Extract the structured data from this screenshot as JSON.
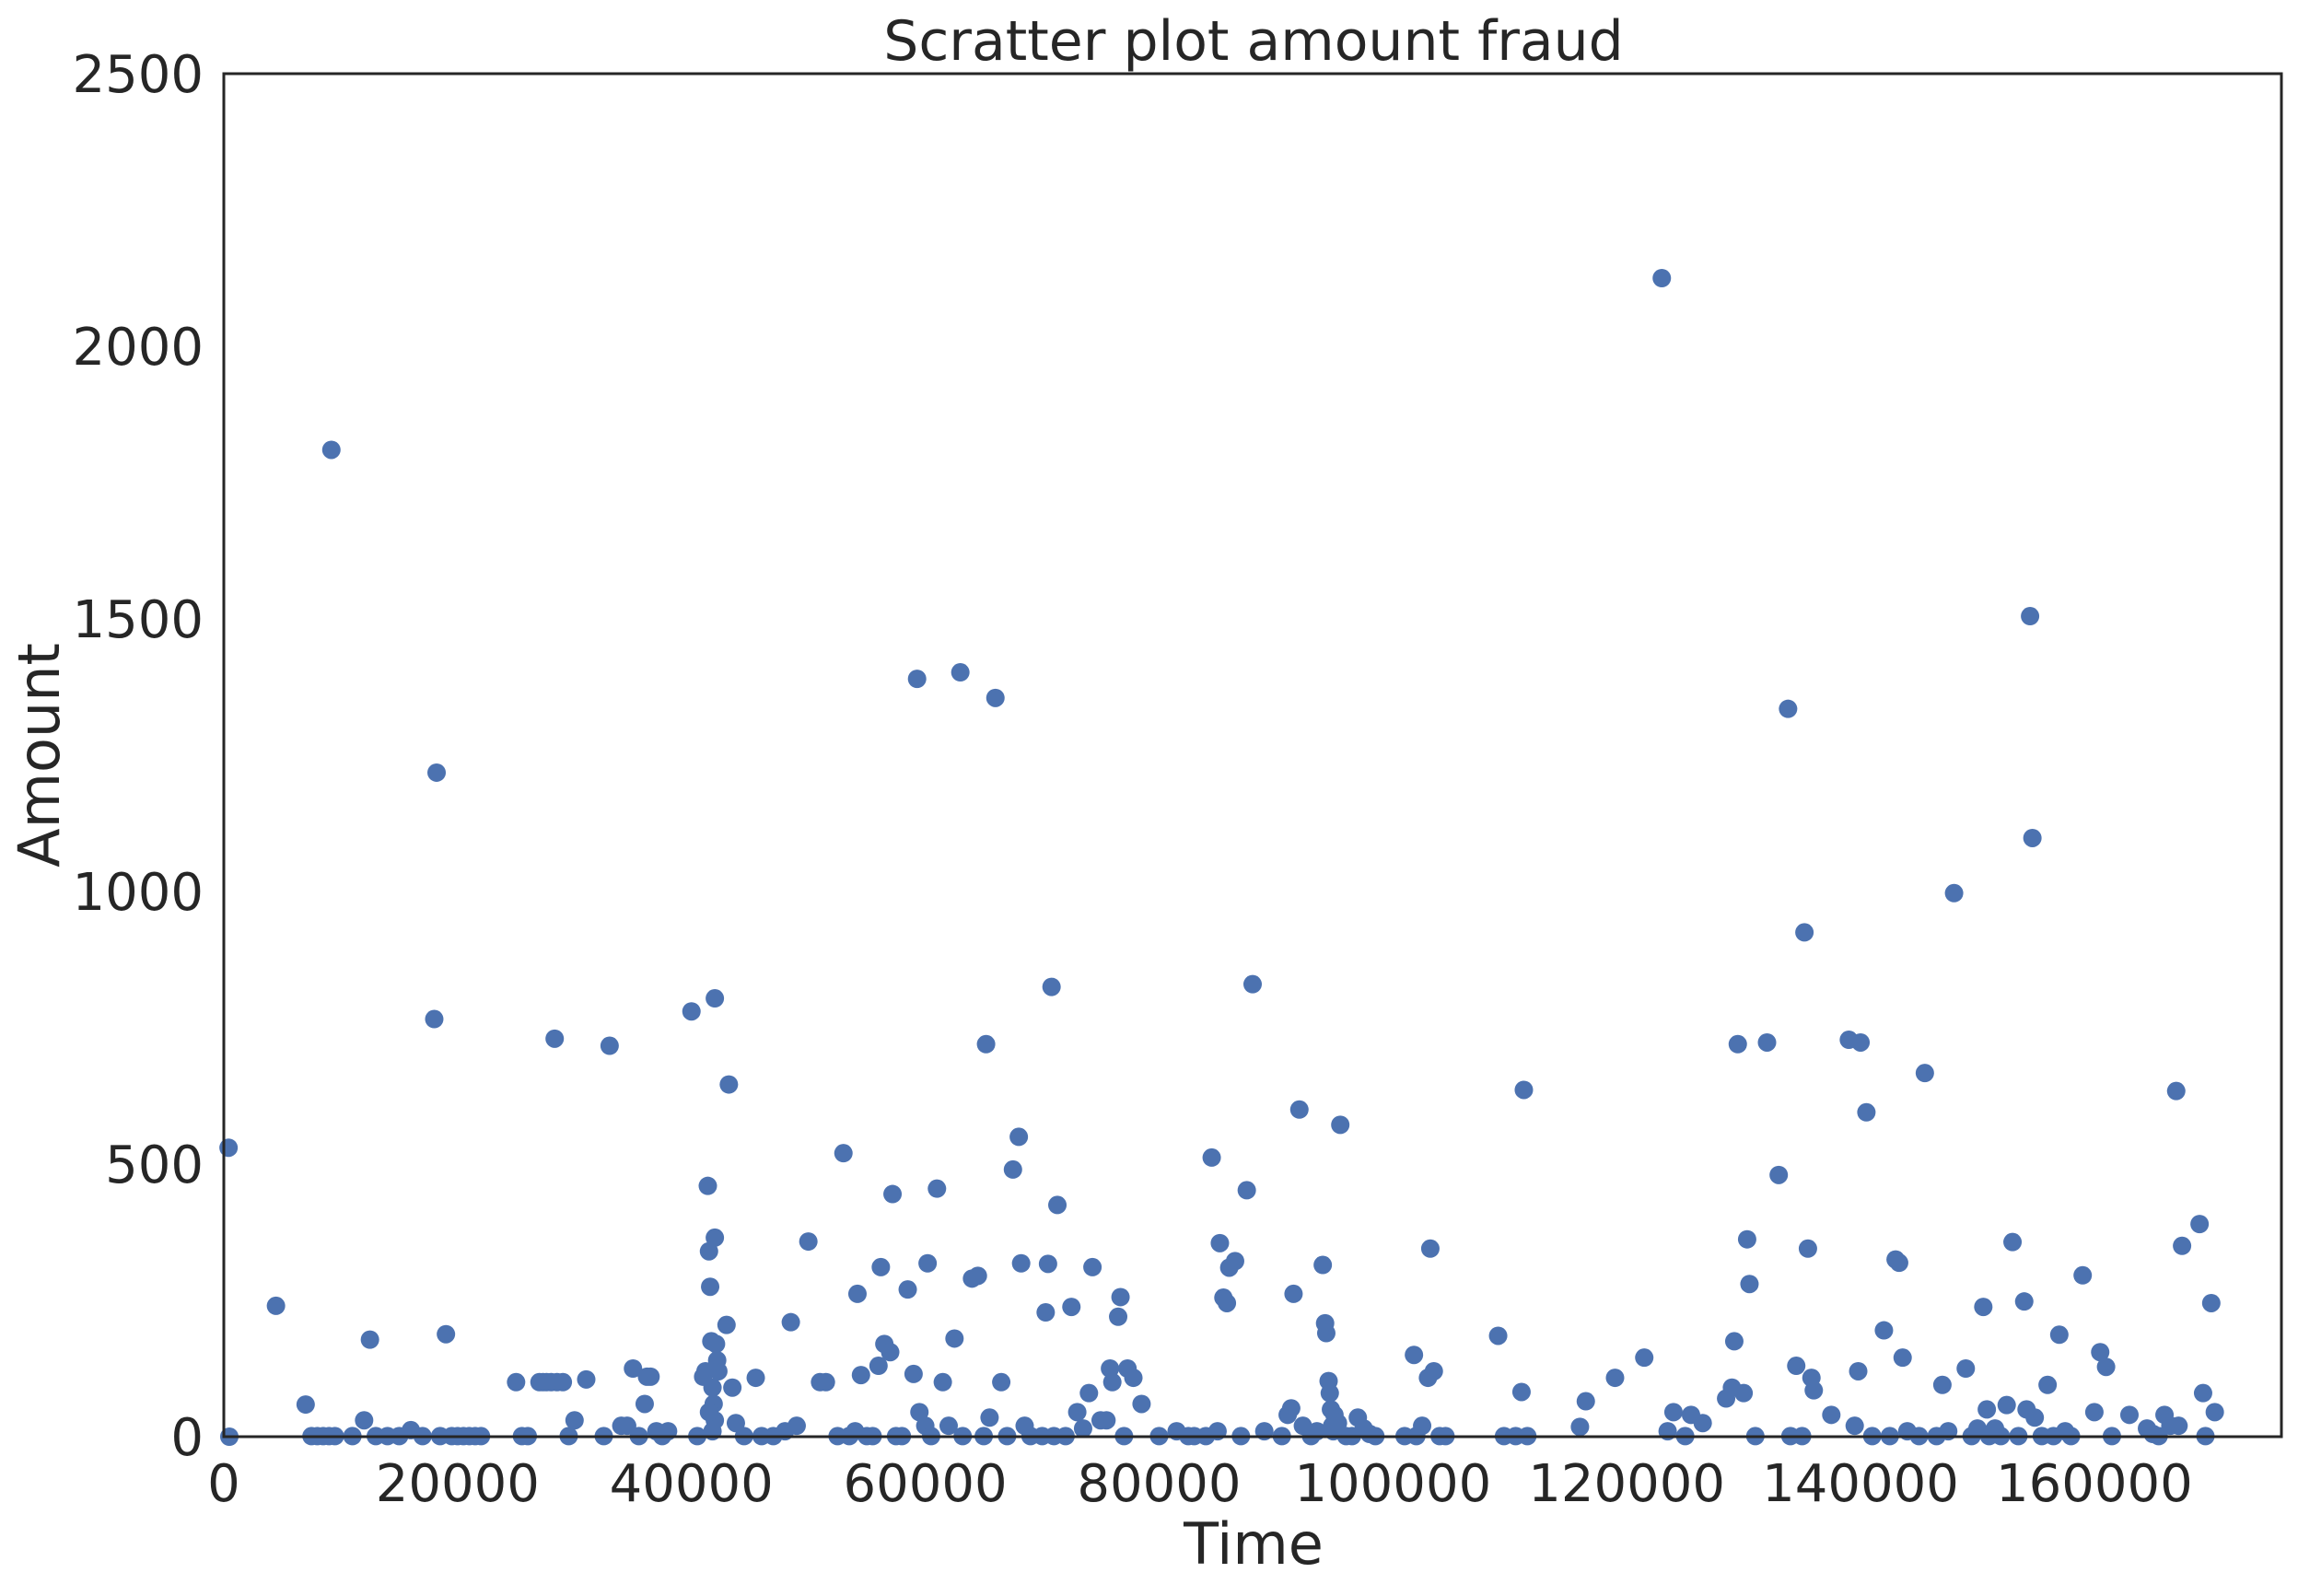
{
  "chart_data": {
    "type": "scatter",
    "title": "Scratter plot amount fraud",
    "xlabel": "Time",
    "ylabel": "Amount",
    "xlim": [
      0,
      176000
    ],
    "ylim": [
      0,
      2500
    ],
    "xticks": [
      0,
      20000,
      40000,
      60000,
      80000,
      100000,
      120000,
      140000,
      160000
    ],
    "xtick_labels": [
      "0",
      "20000",
      "40000",
      "60000",
      "80000",
      "100000",
      "120000",
      "140000",
      "160000"
    ],
    "yticks": [
      0,
      500,
      1000,
      1500,
      2000,
      2500
    ],
    "ytick_labels": [
      "0",
      "500",
      "1000",
      "1500",
      "2000",
      "2500"
    ],
    "grid": false,
    "marker_color": "#4c72b0",
    "series": [
      {
        "points": [
          [
            406,
            530
          ],
          [
            472,
            0
          ],
          [
            4462,
            240
          ],
          [
            7000,
            59
          ],
          [
            7500,
            1
          ],
          [
            8000,
            1
          ],
          [
            8500,
            1
          ],
          [
            9000,
            1
          ],
          [
            9200,
            1810
          ],
          [
            9500,
            1
          ],
          [
            11000,
            1
          ],
          [
            12000,
            30
          ],
          [
            12500,
            178
          ],
          [
            13000,
            1
          ],
          [
            14000,
            1
          ],
          [
            15000,
            1
          ],
          [
            16000,
            12
          ],
          [
            17000,
            1
          ],
          [
            18000,
            766
          ],
          [
            18200,
            1218
          ],
          [
            18500,
            1
          ],
          [
            19000,
            188
          ],
          [
            19500,
            1
          ],
          [
            20000,
            1
          ],
          [
            20500,
            1
          ],
          [
            21000,
            1
          ],
          [
            21500,
            1
          ],
          [
            22000,
            1
          ],
          [
            25000,
            100
          ],
          [
            25500,
            1
          ],
          [
            26000,
            1
          ],
          [
            27000,
            100
          ],
          [
            27300,
            100
          ],
          [
            27600,
            100
          ],
          [
            28000,
            100
          ],
          [
            28300,
            730
          ],
          [
            28500,
            100
          ],
          [
            29000,
            100
          ],
          [
            29500,
            1
          ],
          [
            30000,
            30
          ],
          [
            31000,
            105
          ],
          [
            32500,
            1
          ],
          [
            33000,
            717
          ],
          [
            34000,
            20
          ],
          [
            34500,
            20
          ],
          [
            35000,
            125
          ],
          [
            35500,
            1
          ],
          [
            36000,
            60
          ],
          [
            36200,
            110
          ],
          [
            36500,
            110
          ],
          [
            37000,
            10
          ],
          [
            37500,
            1
          ],
          [
            38000,
            10
          ],
          [
            40000,
            780
          ],
          [
            40500,
            1
          ],
          [
            41000,
            110
          ],
          [
            41200,
            120
          ],
          [
            41400,
            460
          ],
          [
            41500,
            340
          ],
          [
            41600,
            275
          ],
          [
            41700,
            175
          ],
          [
            41800,
            90
          ],
          [
            41900,
            60
          ],
          [
            42000,
            30
          ],
          [
            42100,
            170
          ],
          [
            42200,
            140
          ],
          [
            42300,
            120
          ],
          [
            42000,
            365
          ],
          [
            42000,
            804
          ],
          [
            41800,
            10
          ],
          [
            41500,
            45
          ],
          [
            43000,
            205
          ],
          [
            43200,
            646
          ],
          [
            43500,
            90
          ],
          [
            43800,
            25
          ],
          [
            44500,
            1
          ],
          [
            45500,
            108
          ],
          [
            46000,
            1
          ],
          [
            47000,
            1
          ],
          [
            48000,
            10
          ],
          [
            48500,
            210
          ],
          [
            49000,
            20
          ],
          [
            50000,
            358
          ],
          [
            51000,
            100
          ],
          [
            51500,
            100
          ],
          [
            52500,
            1
          ],
          [
            53000,
            520
          ],
          [
            53500,
            1
          ],
          [
            54000,
            10
          ],
          [
            54200,
            262
          ],
          [
            54500,
            113
          ],
          [
            55000,
            1
          ],
          [
            55500,
            1
          ],
          [
            56000,
            130
          ],
          [
            56200,
            311
          ],
          [
            56500,
            170
          ],
          [
            57000,
            155
          ],
          [
            57200,
            445
          ],
          [
            57500,
            1
          ],
          [
            58000,
            1
          ],
          [
            58500,
            270
          ],
          [
            59000,
            115
          ],
          [
            59300,
            1390
          ],
          [
            59500,
            45
          ],
          [
            60000,
            20
          ],
          [
            60200,
            318
          ],
          [
            60500,
            1
          ],
          [
            61000,
            455
          ],
          [
            61500,
            100
          ],
          [
            62000,
            20
          ],
          [
            62500,
            180
          ],
          [
            63000,
            1402
          ],
          [
            63200,
            1
          ],
          [
            64000,
            290
          ],
          [
            64500,
            295
          ],
          [
            65000,
            1
          ],
          [
            65200,
            720
          ],
          [
            65500,
            35
          ],
          [
            66000,
            1355
          ],
          [
            66500,
            100
          ],
          [
            67000,
            1
          ],
          [
            67500,
            490
          ],
          [
            68000,
            550
          ],
          [
            68200,
            318
          ],
          [
            68500,
            20
          ],
          [
            69000,
            1
          ],
          [
            70000,
            1
          ],
          [
            70300,
            228
          ],
          [
            70500,
            317
          ],
          [
            70800,
            825
          ],
          [
            71000,
            1
          ],
          [
            71300,
            425
          ],
          [
            72000,
            1
          ],
          [
            72500,
            238
          ],
          [
            73000,
            45
          ],
          [
            73500,
            15
          ],
          [
            74000,
            80
          ],
          [
            74300,
            311
          ],
          [
            75000,
            30
          ],
          [
            75500,
            30
          ],
          [
            75800,
            125
          ],
          [
            76000,
            100
          ],
          [
            76500,
            220
          ],
          [
            76700,
            256
          ],
          [
            77000,
            1
          ],
          [
            77300,
            125
          ],
          [
            77800,
            108
          ],
          [
            78500,
            60
          ],
          [
            80000,
            1
          ],
          [
            81500,
            10
          ],
          [
            82500,
            1
          ],
          [
            83000,
            1
          ],
          [
            84000,
            1
          ],
          [
            84500,
            512
          ],
          [
            85000,
            10
          ],
          [
            85200,
            355
          ],
          [
            85500,
            255
          ],
          [
            85800,
            245
          ],
          [
            86000,
            310
          ],
          [
            86500,
            322
          ],
          [
            87000,
            1
          ],
          [
            87500,
            452
          ],
          [
            88000,
            830
          ],
          [
            89000,
            10
          ],
          [
            90500,
            1
          ],
          [
            91000,
            40
          ],
          [
            91300,
            52
          ],
          [
            91500,
            262
          ],
          [
            92000,
            600
          ],
          [
            92300,
            20
          ],
          [
            93000,
            1
          ],
          [
            93500,
            10
          ],
          [
            94000,
            315
          ],
          [
            94200,
            208
          ],
          [
            94300,
            190
          ],
          [
            94500,
            102
          ],
          [
            94600,
            80
          ],
          [
            94700,
            50
          ],
          [
            94800,
            20
          ],
          [
            94900,
            10
          ],
          [
            95000,
            40
          ],
          [
            95300,
            25
          ],
          [
            95500,
            572
          ],
          [
            96000,
            1
          ],
          [
            96500,
            1
          ],
          [
            97000,
            35
          ],
          [
            97500,
            15
          ],
          [
            98000,
            5
          ],
          [
            98500,
            1
          ],
          [
            101000,
            1
          ],
          [
            101800,
            150
          ],
          [
            102000,
            1
          ],
          [
            102500,
            20
          ],
          [
            103000,
            108
          ],
          [
            103200,
            345
          ],
          [
            103500,
            120
          ],
          [
            104000,
            1
          ],
          [
            104500,
            1
          ],
          [
            109000,
            185
          ],
          [
            109500,
            1
          ],
          [
            110500,
            1
          ],
          [
            111000,
            82
          ],
          [
            111200,
            636
          ],
          [
            111500,
            1
          ],
          [
            116000,
            18
          ],
          [
            116500,
            65
          ],
          [
            119000,
            108
          ],
          [
            121500,
            145
          ],
          [
            123000,
            2125
          ],
          [
            123500,
            10
          ],
          [
            124000,
            45
          ],
          [
            125000,
            1
          ],
          [
            125500,
            40
          ],
          [
            126500,
            25
          ],
          [
            128500,
            70
          ],
          [
            129000,
            90
          ],
          [
            129200,
            175
          ],
          [
            129500,
            720
          ],
          [
            130000,
            80
          ],
          [
            130300,
            362
          ],
          [
            130500,
            280
          ],
          [
            131000,
            1
          ],
          [
            132000,
            723
          ],
          [
            133000,
            480
          ],
          [
            133800,
            1335
          ],
          [
            134000,
            1
          ],
          [
            134500,
            130
          ],
          [
            135000,
            1
          ],
          [
            135200,
            925
          ],
          [
            135500,
            345
          ],
          [
            135800,
            108
          ],
          [
            136000,
            85
          ],
          [
            137500,
            40
          ],
          [
            139000,
            728
          ],
          [
            139500,
            20
          ],
          [
            139800,
            120
          ],
          [
            140000,
            723
          ],
          [
            140500,
            595
          ],
          [
            141000,
            1
          ],
          [
            142000,
            195
          ],
          [
            142500,
            1
          ],
          [
            143000,
            325
          ],
          [
            143300,
            319
          ],
          [
            143600,
            145
          ],
          [
            144000,
            10
          ],
          [
            145000,
            1
          ],
          [
            145500,
            667
          ],
          [
            146500,
            1
          ],
          [
            147000,
            95
          ],
          [
            147500,
            10
          ],
          [
            148000,
            997
          ],
          [
            149000,
            125
          ],
          [
            149500,
            1
          ],
          [
            150000,
            15
          ],
          [
            150500,
            238
          ],
          [
            150800,
            50
          ],
          [
            151000,
            1
          ],
          [
            151500,
            15
          ],
          [
            152000,
            1
          ],
          [
            152500,
            58
          ],
          [
            153000,
            357
          ],
          [
            153500,
            1
          ],
          [
            154000,
            248
          ],
          [
            154200,
            50
          ],
          [
            154500,
            1505
          ],
          [
            154700,
            1098
          ],
          [
            154900,
            35
          ],
          [
            155500,
            1
          ],
          [
            156000,
            95
          ],
          [
            156500,
            1
          ],
          [
            157000,
            187
          ],
          [
            157500,
            10
          ],
          [
            158000,
            1
          ],
          [
            159000,
            296
          ],
          [
            160000,
            45
          ],
          [
            160500,
            155
          ],
          [
            161000,
            128
          ],
          [
            161500,
            1
          ],
          [
            163000,
            40
          ],
          [
            164500,
            15
          ],
          [
            165000,
            5
          ],
          [
            165500,
            1
          ],
          [
            166000,
            40
          ],
          [
            166500,
            20
          ],
          [
            167000,
            634
          ],
          [
            167200,
            20
          ],
          [
            167500,
            350
          ],
          [
            169000,
            390
          ],
          [
            169300,
            80
          ],
          [
            169500,
            1
          ],
          [
            170000,
            245
          ],
          [
            170300,
            45
          ]
        ]
      }
    ]
  }
}
